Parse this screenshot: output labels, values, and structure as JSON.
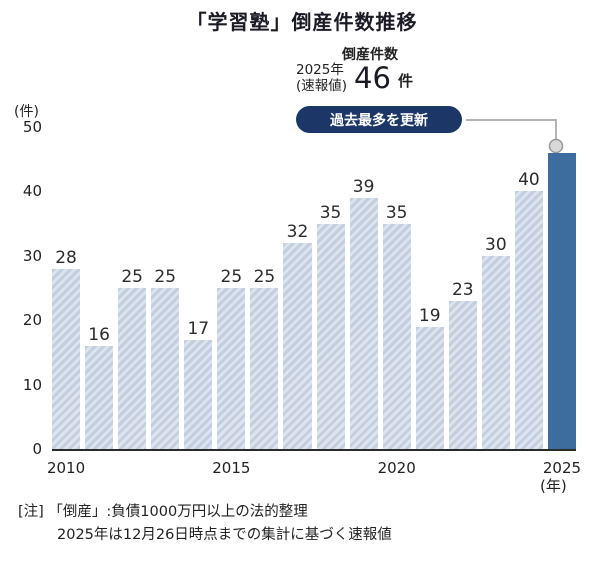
{
  "title": "「学習塾」倒産件数推移",
  "header": {
    "series_label": "倒産件数",
    "callout_year": "2025年",
    "callout_qualifier": "(速報値)",
    "callout_value": "46",
    "callout_unit": "件",
    "badge_label": "過去最多を更新"
  },
  "axes": {
    "y_unit": "(件)",
    "x_unit": "(年)"
  },
  "notes": {
    "line1": "[注] 「倒産」:負債1000万円以上の法的整理",
    "line2": "2025年は12月26日時点までの集計に基づく速報値"
  },
  "colors": {
    "bar_base": "#c3cedf",
    "bar_stripe": "#dde4ef",
    "bar_highlight": "#3d6d9e",
    "badge_bg": "#1b3667",
    "badge_text": "#ffffff",
    "connector": "#b3b3b3",
    "connector_dot_fill": "#d9d9d9",
    "connector_dot_stroke": "#999999",
    "axis": "#2b2b2b"
  },
  "chart_data": {
    "type": "bar",
    "title": "「学習塾」倒産件数推移",
    "categories": [
      "2010",
      "2011",
      "2012",
      "2013",
      "2014",
      "2015",
      "2016",
      "2017",
      "2018",
      "2019",
      "2020",
      "2021",
      "2022",
      "2023",
      "2024",
      "2025"
    ],
    "values": [
      28,
      16,
      25,
      25,
      17,
      25,
      25,
      32,
      35,
      39,
      35,
      19,
      23,
      30,
      40,
      46
    ],
    "ylabel": "(件)",
    "xlabel": "(年)",
    "ylim": [
      0,
      50
    ],
    "yticks": [
      0,
      10,
      20,
      30,
      40,
      50
    ],
    "xtick_labels": [
      "2010",
      "2015",
      "2020",
      "2025"
    ],
    "xtick_indices": [
      0,
      5,
      10,
      15
    ],
    "highlight_index": 15,
    "highlight_annotation": "2025年(速報値) 46件 過去最多を更新",
    "grid": false,
    "legend": false
  }
}
